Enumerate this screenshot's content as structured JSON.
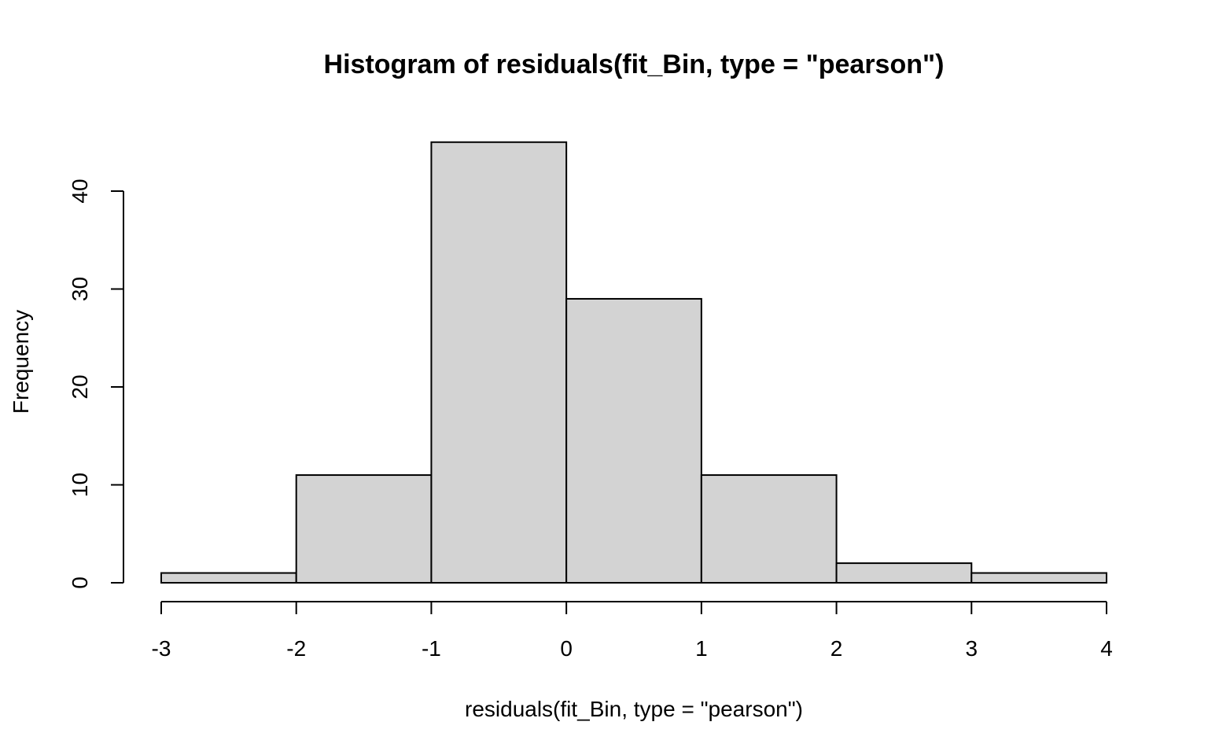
{
  "chart_data": {
    "type": "bar",
    "title": "Histogram of residuals(fit_Bin, type = \"pearson\")",
    "xlabel": "residuals(fit_Bin, type = \"pearson\")",
    "ylabel": "Frequency",
    "bins": [
      {
        "start": -3,
        "end": -2,
        "count": 1
      },
      {
        "start": -2,
        "end": -1,
        "count": 11
      },
      {
        "start": -1,
        "end": 0,
        "count": 45
      },
      {
        "start": 0,
        "end": 1,
        "count": 29
      },
      {
        "start": 1,
        "end": 2,
        "count": 11
      },
      {
        "start": 2,
        "end": 3,
        "count": 2
      },
      {
        "start": 3,
        "end": 4,
        "count": 1
      }
    ],
    "x_ticks": [
      -3,
      -2,
      -1,
      0,
      1,
      2,
      3,
      4
    ],
    "y_ticks": [
      0,
      10,
      20,
      30,
      40
    ],
    "xlim": [
      -3,
      4
    ],
    "ylim": [
      0,
      45
    ],
    "grid": false,
    "bar_color": "#d3d3d3",
    "edge_color": "#000000"
  }
}
